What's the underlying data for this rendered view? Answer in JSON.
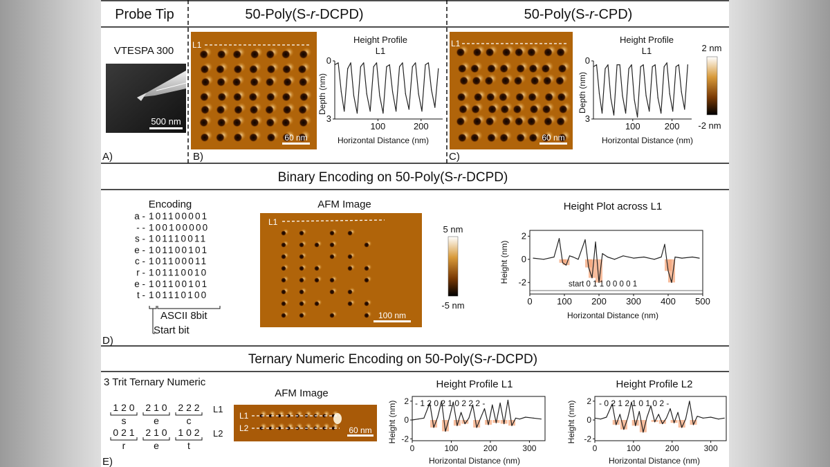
{
  "colors": {
    "afm_dark": "#1a0800",
    "afm_mid": "#b0640a",
    "afm_light": "#ffffff",
    "highlight": "#f4a77c",
    "line": "#111111"
  },
  "panel_a": {
    "header": "Probe Tip",
    "tip_name": "VTESPA 300",
    "scale_bar": "500 nm",
    "letter": "A)"
  },
  "panel_b": {
    "header_prefix": "50-Poly(S-",
    "header_r": "r",
    "header_suffix": "-DCPD)",
    "line_label": "L1",
    "scale_bar": "60 nm",
    "plot_title_1": "Height Profile",
    "plot_title_2": "L1",
    "ylabel": "Depth (nm)",
    "xlabel": "Horizontal Distance (nm)",
    "letter": "B)"
  },
  "panel_c": {
    "header_prefix": "50-Poly(S-",
    "header_r": "r",
    "header_suffix": "-CPD)",
    "line_label": "L1",
    "scale_bar": "60 nm",
    "plot_title_1": "Height Profile",
    "plot_title_2": "L1",
    "ylabel": "Depth (nm)",
    "xlabel": "Horizontal Distance (nm)",
    "colorbar_top": "2 nm",
    "colorbar_bottom": "-2 nm",
    "letter": "C)"
  },
  "panel_d": {
    "header_prefix": "Binary Encoding on 50-Poly(S-",
    "header_r": "r",
    "header_suffix": "-DCPD)",
    "encoding_title": "Encoding",
    "encoding_rows": [
      {
        "ch": "a -",
        "bits": "101100001"
      },
      {
        "ch": "- -",
        "bits": "100100000"
      },
      {
        "ch": "s -",
        "bits": "101110011"
      },
      {
        "ch": "e -",
        "bits": "101100101"
      },
      {
        "ch": "c -",
        "bits": "101100011"
      },
      {
        "ch": "r -",
        "bits": "101110010"
      },
      {
        "ch": "e -",
        "bits": "101100101"
      },
      {
        "ch": "t -",
        "bits": "101110100"
      }
    ],
    "ascii_label": "ASCII 8bit",
    "start_label": "Start bit",
    "afm_title": "AFM Image",
    "line_label": "L1",
    "scale_bar": "100 nm",
    "colorbar_top": "5 nm",
    "colorbar_bottom": "-5 nm",
    "plot_title": "Height Plot across L1",
    "ylabel": "Height (nm)",
    "xlabel": "Horizontal Distance (nm)",
    "bit_readout": "start 0  1  1  0  0  0  0  1",
    "letter": "D)"
  },
  "panel_e": {
    "header_prefix": "Ternary Numeric Encoding on 50-Poly(S-",
    "header_r": "r",
    "header_suffix": "-DCPD)",
    "title": "3 Trit Ternary Numeric",
    "l1_groups": [
      {
        "digits": "1 2 0",
        "letter": "s"
      },
      {
        "digits": "2 1 0",
        "letter": "e"
      },
      {
        "digits": "2 2 2",
        "letter": "c"
      }
    ],
    "l2_groups": [
      {
        "digits": "0 2 1",
        "letter": "r"
      },
      {
        "digits": "2 1 0",
        "letter": "e"
      },
      {
        "digits": "1 0 2",
        "letter": "t"
      }
    ],
    "l1_tag": "L1",
    "l2_tag": "L2",
    "afm_title": "AFM Image",
    "line1_label": "L1",
    "line2_label": "L2",
    "scale_bar": "60 nm",
    "plot1_title": "Height Profile L1",
    "plot1_readout": "- 1 2 0 2 1 0 2 2 2 -",
    "plot2_title": "Height Profile L2",
    "plot2_readout": "- 0 2 1 2 1 0 1 0 2 -",
    "ylabel": "Height (nm)",
    "xlabel": "Horizontal Distance (nm)",
    "letter": "E)"
  },
  "chart_data": [
    {
      "id": "b_profile",
      "type": "line",
      "title": "Height Profile L1",
      "xlabel": "Horizontal Distance (nm)",
      "ylabel": "Depth (nm)",
      "xlim": [
        0,
        250
      ],
      "ylim": [
        0,
        3
      ],
      "yinvert": true,
      "xticks": [
        100,
        200
      ],
      "yticks": [
        0,
        3
      ],
      "x": [
        0,
        8,
        15,
        22,
        30,
        37,
        44,
        52,
        60,
        67,
        74,
        82,
        90,
        97,
        104,
        112,
        120,
        127,
        134,
        142,
        150,
        157,
        164,
        172,
        180,
        187,
        194,
        202,
        210,
        217,
        224,
        232,
        240
      ],
      "y": [
        0.2,
        0.1,
        1.6,
        2.6,
        0.4,
        0.1,
        1.8,
        2.7,
        0.3,
        0.1,
        1.7,
        2.6,
        0.3,
        0.1,
        1.8,
        2.7,
        0.3,
        0.2,
        1.6,
        2.6,
        0.3,
        0.1,
        1.7,
        2.5,
        0.3,
        0.1,
        1.7,
        2.6,
        0.2,
        0.1,
        1.5,
        2.4,
        0.4
      ]
    },
    {
      "id": "c_profile",
      "type": "line",
      "title": "Height Profile L1",
      "xlabel": "Horizontal Distance (nm)",
      "ylabel": "Depth (nm)",
      "xlim": [
        0,
        250
      ],
      "ylim": [
        0,
        3
      ],
      "yinvert": true,
      "xticks": [
        100,
        200
      ],
      "yticks": [
        0,
        3
      ],
      "x": [
        0,
        8,
        15,
        22,
        30,
        37,
        44,
        52,
        60,
        67,
        74,
        82,
        90,
        97,
        104,
        112,
        120,
        127,
        134,
        142,
        150,
        157,
        164,
        172,
        180,
        187,
        194,
        202,
        210,
        217,
        224,
        232,
        240
      ],
      "y": [
        0.3,
        0.2,
        1.7,
        2.7,
        0.4,
        0.2,
        1.9,
        2.8,
        0.2,
        0.2,
        1.8,
        2.7,
        0.4,
        0.2,
        2.0,
        2.9,
        0.3,
        0.2,
        1.8,
        2.6,
        0.3,
        0.2,
        1.9,
        2.7,
        0.3,
        0.1,
        1.7,
        2.6,
        0.3,
        0.2,
        1.6,
        2.5,
        0.2
      ]
    },
    {
      "id": "d_profile",
      "type": "line",
      "title": "Height Plot across L1",
      "xlabel": "Horizontal Distance (nm)",
      "ylabel": "Height (nm)",
      "xlim": [
        0,
        500
      ],
      "ylim": [
        -3,
        2.5
      ],
      "xticks": [
        0,
        100,
        200,
        300,
        400,
        500
      ],
      "yticks": [
        2,
        0,
        -2
      ],
      "x": [
        10,
        40,
        70,
        85,
        95,
        105,
        115,
        125,
        140,
        160,
        170,
        180,
        190,
        200,
        210,
        225,
        245,
        270,
        300,
        330,
        360,
        380,
        390,
        400,
        410,
        420,
        440,
        470,
        490
      ],
      "y": [
        0.1,
        0.0,
        0.2,
        1.8,
        -0.3,
        -0.5,
        0.3,
        0.2,
        0.0,
        1.7,
        -0.7,
        -1.6,
        1.5,
        -2.0,
        0.5,
        0.2,
        0.0,
        0.3,
        0.1,
        0.2,
        0.0,
        0.2,
        1.3,
        -1.0,
        -2.0,
        0.2,
        0.1,
        0.2,
        0.1
      ],
      "bits": [
        "start",
        "0",
        "1",
        "1",
        "0",
        "0",
        "0",
        "0",
        "1"
      ]
    },
    {
      "id": "e_profile_l1",
      "type": "line",
      "title": "Height Profile L1",
      "xlabel": "Horizontal Distance (nm)",
      "ylabel": "Height (nm)",
      "xlim": [
        0,
        340
      ],
      "ylim": [
        -2.2,
        2.5
      ],
      "xticks": [
        0,
        100,
        200,
        300
      ],
      "yticks": [
        2,
        0,
        -2
      ],
      "x": [
        0,
        15,
        30,
        45,
        55,
        65,
        75,
        85,
        95,
        105,
        115,
        125,
        135,
        145,
        155,
        165,
        175,
        185,
        195,
        205,
        215,
        225,
        235,
        245,
        255,
        265,
        275,
        290,
        310,
        330
      ],
      "y": [
        0.0,
        0.1,
        0.2,
        1.8,
        -0.8,
        0.3,
        2.0,
        -1.2,
        0.2,
        1.9,
        -0.6,
        0.8,
        -0.4,
        0.2,
        1.6,
        -0.8,
        0.2,
        1.2,
        -0.5,
        1.6,
        -0.3,
        1.8,
        -0.4,
        2.1,
        -0.6,
        0.2,
        0.1,
        0.3,
        0.2,
        0.1
      ]
    },
    {
      "id": "e_profile_l2",
      "type": "line",
      "title": "Height Profile L2",
      "xlabel": "Horizontal Distance (nm)",
      "ylabel": "Height (nm)",
      "xlim": [
        0,
        340
      ],
      "ylim": [
        -2.2,
        2.5
      ],
      "xticks": [
        0,
        100,
        200,
        300
      ],
      "yticks": [
        2,
        0,
        -2
      ],
      "x": [
        0,
        15,
        30,
        45,
        55,
        65,
        75,
        85,
        95,
        105,
        115,
        125,
        135,
        145,
        155,
        165,
        175,
        185,
        195,
        205,
        215,
        225,
        235,
        245,
        255,
        265,
        280,
        300,
        320,
        335
      ],
      "y": [
        0.2,
        0.1,
        0.3,
        1.7,
        -0.5,
        0.6,
        -1.0,
        0.2,
        1.9,
        -0.6,
        0.9,
        -1.3,
        0.3,
        1.5,
        -0.2,
        0.6,
        -0.4,
        0.2,
        1.2,
        -0.3,
        0.8,
        -0.8,
        0.1,
        2.0,
        -0.5,
        0.4,
        0.2,
        0.3,
        0.1,
        0.2
      ]
    }
  ]
}
